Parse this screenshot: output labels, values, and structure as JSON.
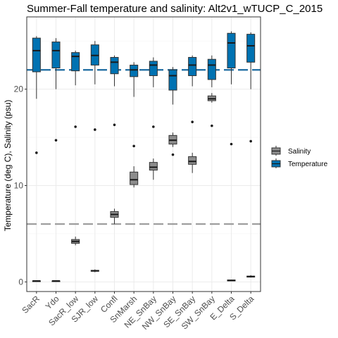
{
  "chart_data": {
    "type": "boxplot",
    "title": "Summer-Fall temperature and salinity: Alt2v1_wTUCP_C_2015",
    "xlabel": "",
    "ylabel": "Temperature (deg C), Salinity (psu)",
    "ylim": [
      -1,
      27.5
    ],
    "yticks": [
      0,
      10,
      20
    ],
    "grid": true,
    "legend_position": "right",
    "categories": [
      "SacR",
      "Ydo",
      "SacR_low",
      "SJR_low",
      "Confl",
      "SnMarsh",
      "NE_SnBay",
      "NW_SnBay",
      "SE_SnBay",
      "SW_SnBay",
      "E_Delta",
      "S_Delta"
    ],
    "reference_lines": [
      {
        "series": "Temperature",
        "y": 22,
        "style": "dashed",
        "color": "#1a6aa0"
      },
      {
        "series": "Salinity",
        "y": 6,
        "style": "dashed",
        "color": "#999999"
      }
    ],
    "series": [
      {
        "name": "Salinity",
        "color": "#8c8c8c",
        "boxes": [
          {
            "category": "SacR",
            "min": 0.1,
            "q1": 0.1,
            "median": 0.1,
            "q3": 0.1,
            "max": 0.1,
            "outliers": []
          },
          {
            "category": "Ydo",
            "min": 0.1,
            "q1": 0.1,
            "median": 0.1,
            "q3": 0.1,
            "max": 0.1,
            "outliers": []
          },
          {
            "category": "SacR_low",
            "min": 3.8,
            "q1": 4.0,
            "median": 4.2,
            "q3": 4.4,
            "max": 4.7,
            "outliers": []
          },
          {
            "category": "SJR_low",
            "min": 1.0,
            "q1": 1.1,
            "median": 1.15,
            "q3": 1.2,
            "max": 1.3,
            "outliers": []
          },
          {
            "category": "Confl",
            "min": 6.0,
            "q1": 6.7,
            "median": 7.0,
            "q3": 7.3,
            "max": 7.6,
            "outliers": []
          },
          {
            "category": "SnMarsh",
            "min": 9.8,
            "q1": 10.1,
            "median": 10.6,
            "q3": 11.4,
            "max": 12.0,
            "outliers": []
          },
          {
            "category": "NE_SnBay",
            "min": 10.6,
            "q1": 11.6,
            "median": 11.9,
            "q3": 12.4,
            "max": 12.8,
            "outliers": []
          },
          {
            "category": "NW_SnBay",
            "min": 14.0,
            "q1": 14.3,
            "median": 14.7,
            "q3": 15.2,
            "max": 15.5,
            "outliers": []
          },
          {
            "category": "SE_SnBay",
            "min": 11.3,
            "q1": 12.2,
            "median": 12.5,
            "q3": 13.0,
            "max": 13.4,
            "outliers": []
          },
          {
            "category": "SW_SnBay",
            "min": 18.6,
            "q1": 18.8,
            "median": 19.0,
            "q3": 19.3,
            "max": 19.6,
            "outliers": []
          },
          {
            "category": "E_Delta",
            "min": 0.1,
            "q1": 0.1,
            "median": 0.15,
            "q3": 0.2,
            "max": 0.2,
            "outliers": []
          },
          {
            "category": "S_Delta",
            "min": 0.45,
            "q1": 0.5,
            "median": 0.55,
            "q3": 0.6,
            "max": 0.7,
            "outliers": []
          }
        ]
      },
      {
        "name": "Temperature",
        "color": "#0072b2",
        "boxes": [
          {
            "category": "SacR",
            "min": 19.0,
            "q1": 21.8,
            "median": 24.0,
            "q3": 25.3,
            "max": 25.5,
            "outliers": [
              13.4
            ]
          },
          {
            "category": "Ydo",
            "min": 20.0,
            "q1": 22.2,
            "median": 24.0,
            "q3": 24.9,
            "max": 25.3,
            "outliers": [
              14.7
            ]
          },
          {
            "category": "SacR_low",
            "min": 20.4,
            "q1": 21.9,
            "median": 23.4,
            "q3": 23.8,
            "max": 24.0,
            "outliers": [
              16.1
            ]
          },
          {
            "category": "SJR_low",
            "min": 20.5,
            "q1": 22.5,
            "median": 23.5,
            "q3": 24.6,
            "max": 25.0,
            "outliers": [
              15.8
            ]
          },
          {
            "category": "Confl",
            "min": 20.3,
            "q1": 21.6,
            "median": 22.8,
            "q3": 23.3,
            "max": 23.5,
            "outliers": [
              16.3
            ]
          },
          {
            "category": "SnMarsh",
            "min": 19.2,
            "q1": 21.3,
            "median": 22.0,
            "q3": 22.5,
            "max": 22.8,
            "outliers": [
              14.1
            ]
          },
          {
            "category": "NE_SnBay",
            "min": 20.2,
            "q1": 21.4,
            "median": 22.5,
            "q3": 22.9,
            "max": 23.3,
            "outliers": [
              16.1
            ]
          },
          {
            "category": "NW_SnBay",
            "min": 18.4,
            "q1": 19.9,
            "median": 21.4,
            "q3": 22.0,
            "max": 22.3,
            "outliers": [
              13.2
            ]
          },
          {
            "category": "SE_SnBay",
            "min": 20.3,
            "q1": 21.4,
            "median": 22.5,
            "q3": 23.3,
            "max": 23.5,
            "outliers": [
              16.6
            ]
          },
          {
            "category": "SW_SnBay",
            "min": 20.2,
            "q1": 21.0,
            "median": 22.5,
            "q3": 23.1,
            "max": 23.5,
            "outliers": [
              16.2
            ]
          },
          {
            "category": "E_Delta",
            "min": 20.5,
            "q1": 22.2,
            "median": 24.8,
            "q3": 25.8,
            "max": 26.0,
            "outliers": [
              14.3
            ]
          },
          {
            "category": "S_Delta",
            "min": 20.0,
            "q1": 22.8,
            "median": 24.5,
            "q3": 25.7,
            "max": 25.9,
            "outliers": [
              14.6
            ]
          }
        ]
      }
    ]
  }
}
